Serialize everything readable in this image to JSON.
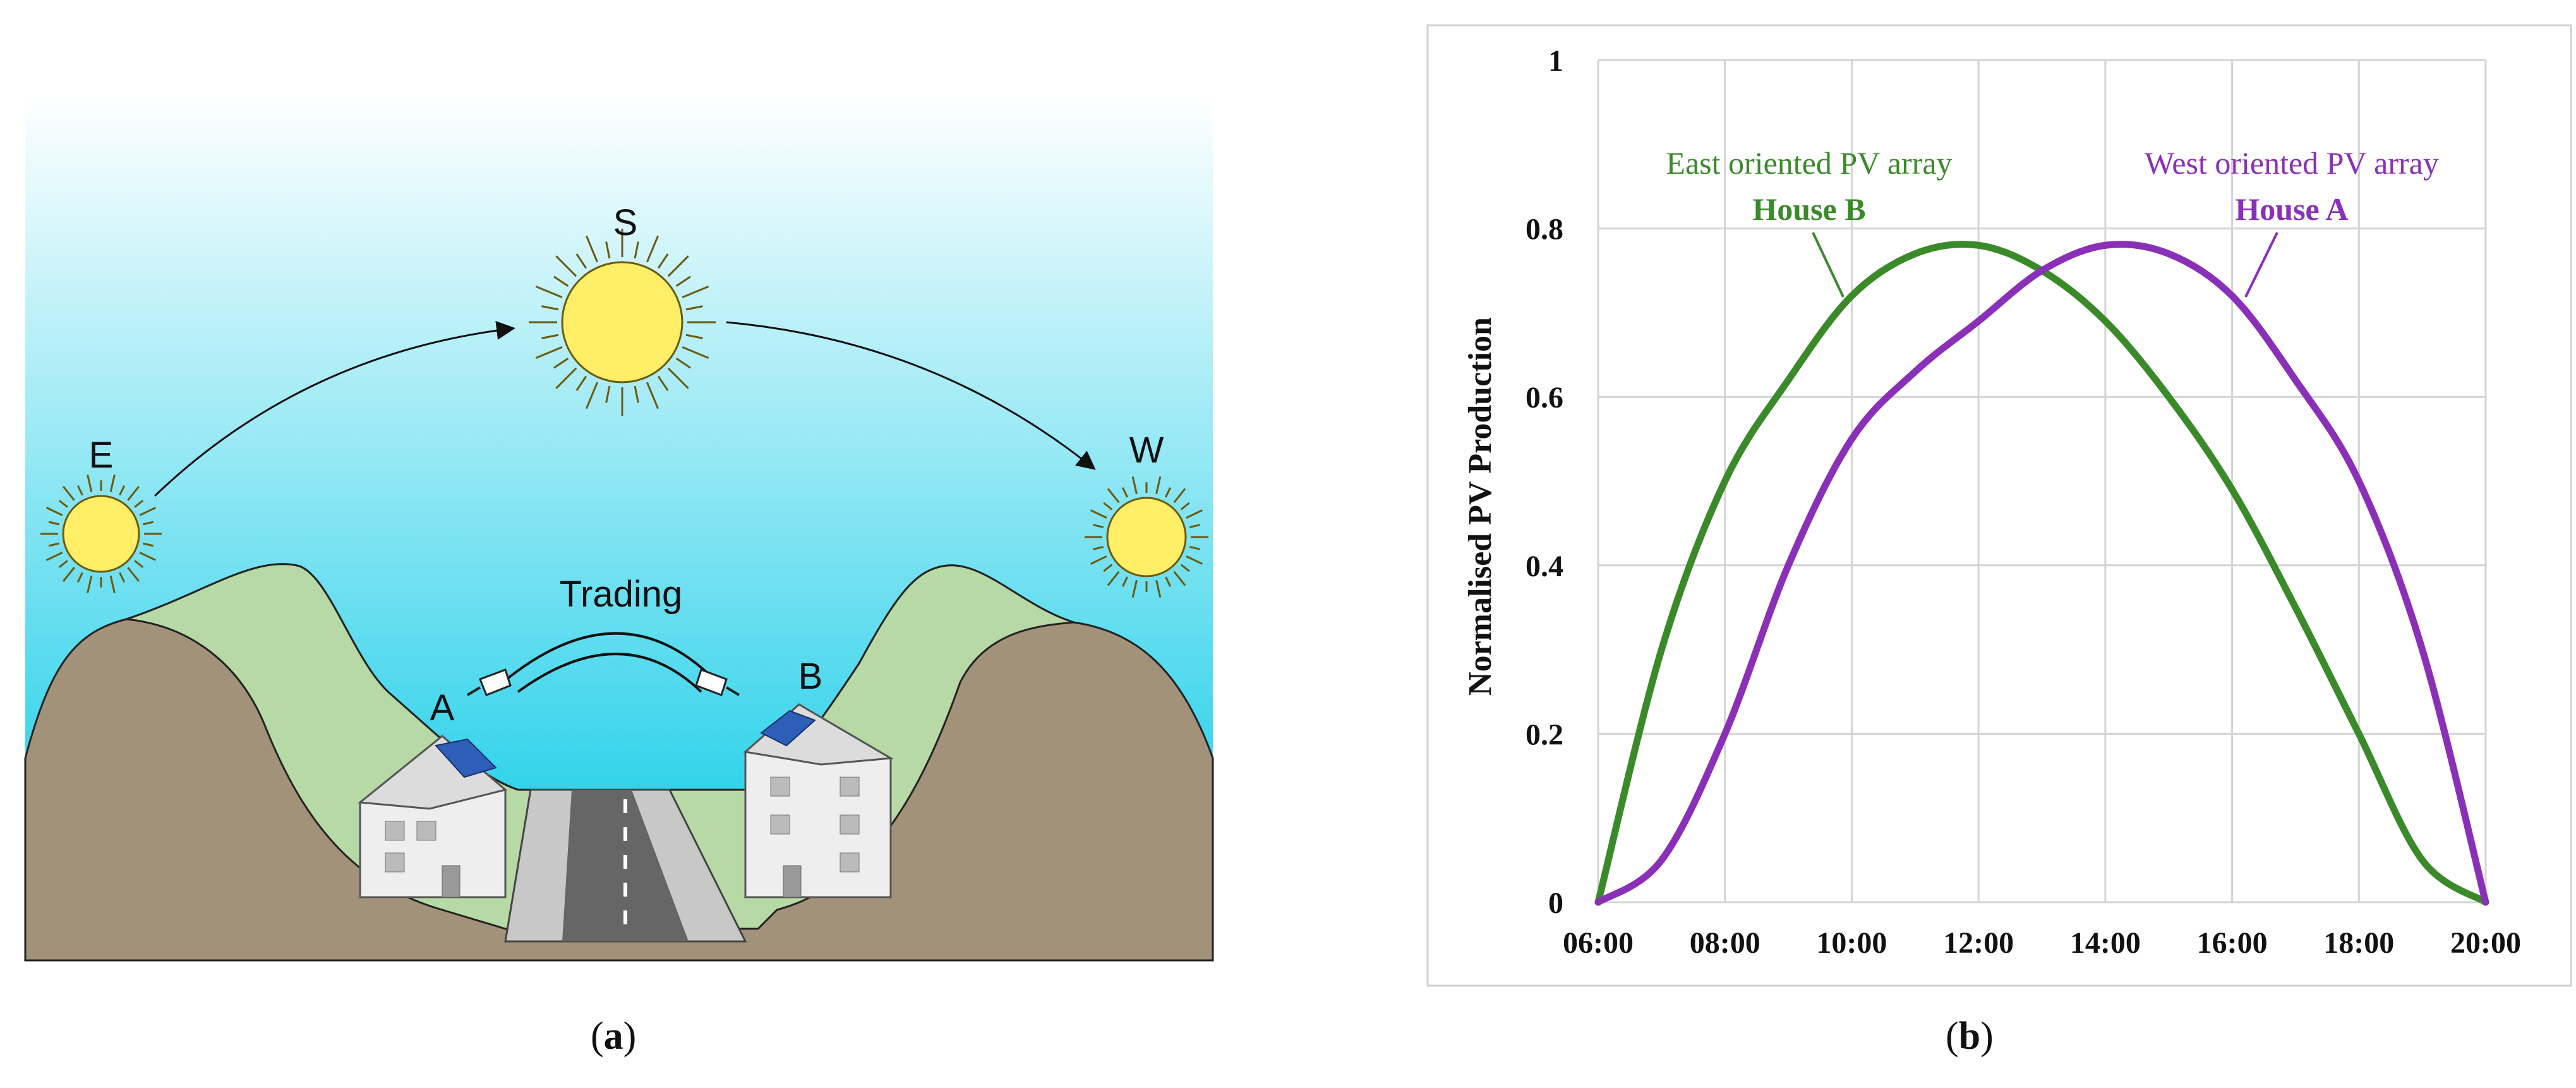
{
  "panel_a": {
    "label_e": "E",
    "label_s": "S",
    "label_w": "W",
    "label_a": "A",
    "label_b": "B",
    "trading": "Trading",
    "caption_open": "(",
    "caption_letter": "a",
    "caption_close": ")",
    "colors": {
      "sky_top": "#ffffff",
      "sky_bottom": "#00c8e6",
      "hill": "#a3927a",
      "grass": "#b7d9a6",
      "sun": "#ffee66",
      "road": "#666666"
    }
  },
  "panel_b": {
    "caption_open": "(",
    "caption_letter": "b",
    "caption_close": ")"
  },
  "chart_data": {
    "type": "line",
    "xlabel": "",
    "ylabel": "Normalised PV Production",
    "ylim": [
      0,
      1
    ],
    "yticks": [
      "0",
      "0.2",
      "0.4",
      "0.6",
      "0.8",
      "1"
    ],
    "xticks": [
      "06:00",
      "08:00",
      "10:00",
      "12:00",
      "14:00",
      "16:00",
      "18:00",
      "20:00"
    ],
    "grid": true,
    "x": [
      "06:00",
      "07:00",
      "08:00",
      "09:00",
      "10:00",
      "11:00",
      "12:00",
      "13:00",
      "14:00",
      "15:00",
      "16:00",
      "17:00",
      "18:00",
      "19:00",
      "20:00"
    ],
    "series": [
      {
        "name": "East oriented PV array",
        "sublabel": "House B",
        "color": "#3a8a2a",
        "values": [
          0,
          0.3,
          0.5,
          0.62,
          0.72,
          0.77,
          0.78,
          0.75,
          0.69,
          0.6,
          0.49,
          0.35,
          0.2,
          0.05,
          0
        ]
      },
      {
        "name": "West oriented PV array",
        "sublabel": "House A",
        "color": "#8a2fb8",
        "values": [
          0,
          0.05,
          0.2,
          0.4,
          0.55,
          0.63,
          0.69,
          0.75,
          0.78,
          0.77,
          0.72,
          0.62,
          0.5,
          0.3,
          0
        ]
      }
    ]
  }
}
